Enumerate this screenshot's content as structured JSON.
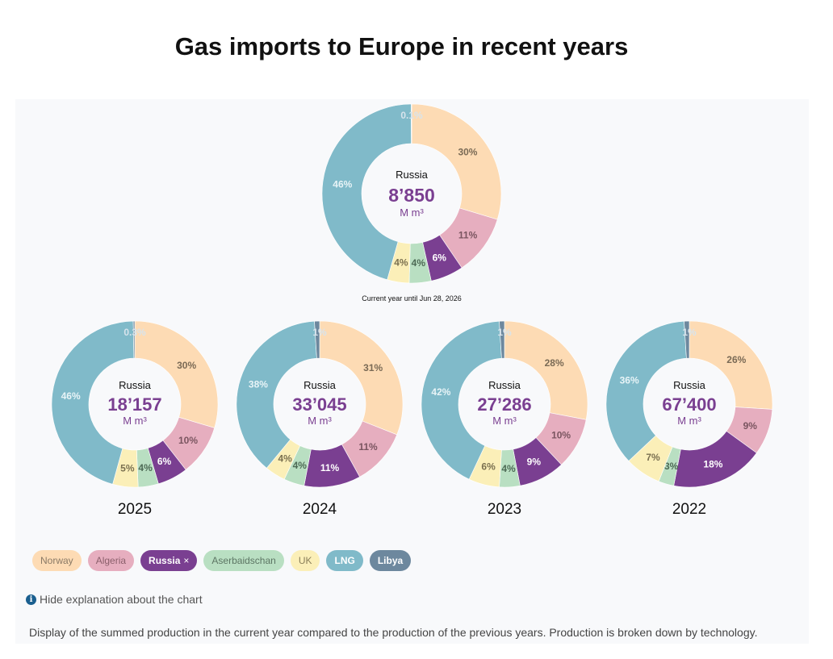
{
  "title": "Gas imports to Europe in recent years",
  "categories": [
    "Norway",
    "Algeria",
    "Russia",
    "Aserbaidschan",
    "UK",
    "LNG",
    "Libya"
  ],
  "colors": {
    "Norway": "#fddbb4",
    "Algeria": "#e6aebf",
    "Russia": "#7a3f91",
    "Aserbaidschan": "#b9dfc2",
    "UK": "#fbefb8",
    "LNG": "#80bac9",
    "Libya": "#6d889e"
  },
  "selected": "Russia",
  "unit": "M m³",
  "caption": "Current year until Jun 28, 2026",
  "chart_data": [
    {
      "type": "pie",
      "label": "",
      "center_label": "Russia",
      "center_value": "8’850",
      "slices": [
        {
          "name": "Norway",
          "pct": 30,
          "label": "30%"
        },
        {
          "name": "Algeria",
          "pct": 11,
          "label": "11%"
        },
        {
          "name": "Russia",
          "pct": 6,
          "label": "6%"
        },
        {
          "name": "Aserbaidschan",
          "pct": 4,
          "label": "4%"
        },
        {
          "name": "UK",
          "pct": 4,
          "label": "4%"
        },
        {
          "name": "LNG",
          "pct": 46,
          "label": "46%"
        },
        {
          "name": "Libya",
          "pct": 0.1,
          "label": "0.1%"
        }
      ]
    },
    {
      "type": "pie",
      "label": "2025",
      "center_label": "Russia",
      "center_value": "18’157",
      "slices": [
        {
          "name": "Norway",
          "pct": 30,
          "label": "30%"
        },
        {
          "name": "Algeria",
          "pct": 10,
          "label": "10%"
        },
        {
          "name": "Russia",
          "pct": 6,
          "label": "6%"
        },
        {
          "name": "Aserbaidschan",
          "pct": 4,
          "label": "4%"
        },
        {
          "name": "UK",
          "pct": 5,
          "label": "5%"
        },
        {
          "name": "LNG",
          "pct": 46,
          "label": "46%"
        },
        {
          "name": "Libya",
          "pct": 0.3,
          "label": "0.3%"
        }
      ]
    },
    {
      "type": "pie",
      "label": "2024",
      "center_label": "Russia",
      "center_value": "33’045",
      "slices": [
        {
          "name": "Norway",
          "pct": 31,
          "label": "31%"
        },
        {
          "name": "Algeria",
          "pct": 11,
          "label": "11%"
        },
        {
          "name": "Russia",
          "pct": 11,
          "label": "11%"
        },
        {
          "name": "Aserbaidschan",
          "pct": 4,
          "label": "4%"
        },
        {
          "name": "UK",
          "pct": 4,
          "label": "4%"
        },
        {
          "name": "LNG",
          "pct": 38,
          "label": "38%"
        },
        {
          "name": "Libya",
          "pct": 1,
          "label": "1%"
        }
      ]
    },
    {
      "type": "pie",
      "label": "2023",
      "center_label": "Russia",
      "center_value": "27’286",
      "slices": [
        {
          "name": "Norway",
          "pct": 28,
          "label": "28%"
        },
        {
          "name": "Algeria",
          "pct": 10,
          "label": "10%"
        },
        {
          "name": "Russia",
          "pct": 9,
          "label": "9%"
        },
        {
          "name": "Aserbaidschan",
          "pct": 4,
          "label": "4%"
        },
        {
          "name": "UK",
          "pct": 6,
          "label": "6%"
        },
        {
          "name": "LNG",
          "pct": 42,
          "label": "42%"
        },
        {
          "name": "Libya",
          "pct": 1,
          "label": "1%"
        }
      ]
    },
    {
      "type": "pie",
      "label": "2022",
      "center_label": "Russia",
      "center_value": "67’400",
      "slices": [
        {
          "name": "Norway",
          "pct": 26,
          "label": "26%"
        },
        {
          "name": "Algeria",
          "pct": 9,
          "label": "9%"
        },
        {
          "name": "Russia",
          "pct": 18,
          "label": "18%"
        },
        {
          "name": "Aserbaidschan",
          "pct": 3,
          "label": "3%"
        },
        {
          "name": "UK",
          "pct": 7,
          "label": "7%"
        },
        {
          "name": "LNG",
          "pct": 36,
          "label": "36%"
        },
        {
          "name": "Libya",
          "pct": 1,
          "label": "1%"
        }
      ]
    }
  ],
  "legend": {
    "close_glyph": "×"
  },
  "explain_toggle": {
    "icon": "info-icon",
    "icon_glyph": "i",
    "label": "Hide explanation about the chart"
  },
  "explanation": "Display of the summed production in the current year compared to the production of the previous years. Production is broken down by technology."
}
